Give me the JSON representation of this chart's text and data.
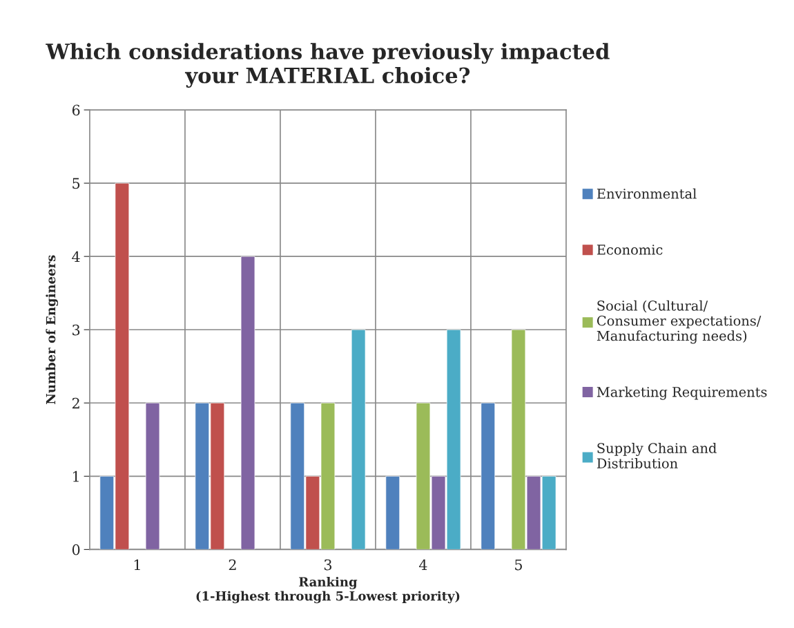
{
  "chart_data": {
    "type": "bar",
    "title": "Which considerations have previously impacted\nyour MATERIAL choice?",
    "xlabel": "Ranking\n(1-Highest through 5-Lowest priority)",
    "ylabel": "Number of Engineers",
    "categories": [
      "1",
      "2",
      "3",
      "4",
      "5"
    ],
    "series": [
      {
        "name": "Environmental",
        "color": "#4f81bd",
        "values": [
          1,
          2,
          2,
          1,
          2
        ]
      },
      {
        "name": "Economic",
        "color": "#c0504d",
        "values": [
          5,
          2,
          1,
          null,
          null
        ]
      },
      {
        "name": "Social (Cultural/\nConsumer expectations/\nManufacturing needs)",
        "color": "#9bbb59",
        "values": [
          null,
          null,
          2,
          2,
          3
        ]
      },
      {
        "name": "Marketing Requirements",
        "color": "#8064a2",
        "values": [
          2,
          4,
          null,
          1,
          1
        ]
      },
      {
        "name": "Supply Chain and\nDistribution",
        "color": "#4bacc6",
        "values": [
          null,
          null,
          3,
          3,
          1
        ]
      }
    ],
    "ylim": [
      0,
      6
    ],
    "yticks": [
      0,
      1,
      2,
      3,
      4,
      5,
      6
    ],
    "grid": true,
    "legend": "right"
  }
}
